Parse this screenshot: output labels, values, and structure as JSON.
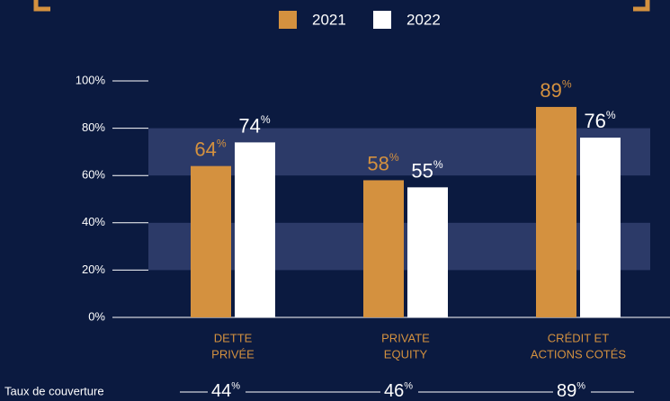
{
  "chart_data": {
    "type": "bar",
    "categories": [
      [
        "DETTE",
        "PRIVÉE"
      ],
      [
        "PRIVATE",
        "EQUITY"
      ],
      [
        "CRÉDIT ET",
        "ACTIONS COTÉS"
      ]
    ],
    "series": [
      {
        "name": "2021",
        "color": "#d4913f",
        "values": [
          64,
          58,
          89
        ],
        "value_labels": [
          "64%",
          "58%",
          "89%"
        ]
      },
      {
        "name": "2022",
        "color": "#ffffff",
        "values": [
          74,
          55,
          76
        ],
        "value_labels": [
          "74%",
          "55%",
          "76%"
        ]
      }
    ],
    "ylim": [
      0,
      100
    ],
    "yticks": [
      {
        "value": 0,
        "label": "0%"
      },
      {
        "value": 20,
        "label": "20%"
      },
      {
        "value": 40,
        "label": "40%"
      },
      {
        "value": 60,
        "label": "60%"
      },
      {
        "value": 80,
        "label": "80%"
      },
      {
        "value": 100,
        "label": "100%"
      }
    ],
    "coverage": {
      "label": "Taux de couverture",
      "values": [
        44,
        46,
        89
      ],
      "value_labels": [
        "44%",
        "46%",
        "89%"
      ]
    }
  }
}
